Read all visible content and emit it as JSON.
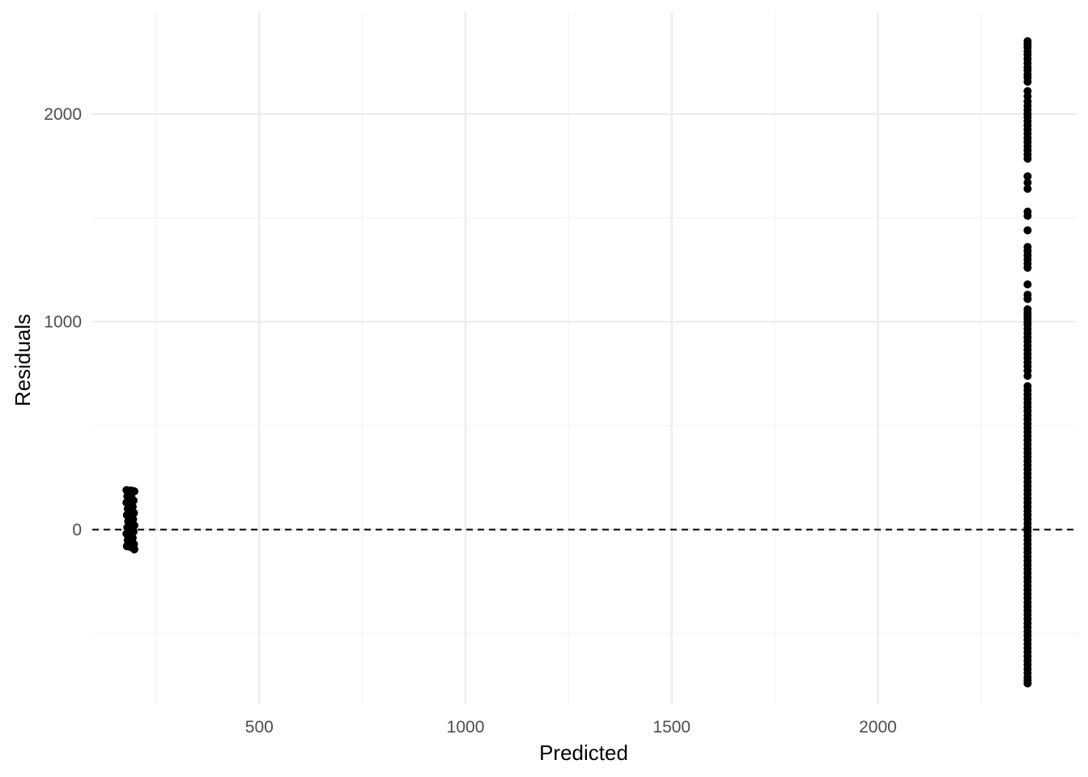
{
  "chart_data": {
    "type": "scatter",
    "title": "",
    "xlabel": "Predicted",
    "ylabel": "Residuals",
    "xlim": [
      95,
      2480
    ],
    "ylim": [
      -840,
      2490
    ],
    "x_major_ticks": [
      500,
      1000,
      1500,
      2000
    ],
    "x_minor_ticks": [
      250,
      750,
      1250,
      1750,
      2250
    ],
    "x_tick_labels": [
      "500",
      "1000",
      "1500",
      "2000"
    ],
    "y_major_ticks": [
      0,
      1000,
      2000
    ],
    "y_minor_ticks": [
      -500,
      500,
      1500
    ],
    "y_tick_labels": [
      "0",
      "1000",
      "2000"
    ],
    "grid": true,
    "reference_line": {
      "y": 0,
      "style": "dashed",
      "color": "#000000"
    },
    "point_color": "#000000",
    "series": [
      {
        "x_range": [
          178,
          197
        ],
        "points": [
          [
            178,
            190
          ],
          [
            181,
            185
          ],
          [
            184,
            180
          ],
          [
            186,
            170
          ],
          [
            188,
            188
          ],
          [
            191,
            178
          ],
          [
            194,
            186
          ],
          [
            197,
            184
          ],
          [
            180,
            160
          ],
          [
            185,
            150
          ],
          [
            190,
            155
          ],
          [
            195,
            140
          ],
          [
            178,
            130
          ],
          [
            183,
            120
          ],
          [
            188,
            125
          ],
          [
            193,
            110
          ],
          [
            181,
            100
          ],
          [
            186,
            95
          ],
          [
            191,
            90
          ],
          [
            196,
            80
          ],
          [
            179,
            70
          ],
          [
            184,
            60
          ],
          [
            189,
            65
          ],
          [
            194,
            50
          ],
          [
            182,
            40
          ],
          [
            187,
            30
          ],
          [
            192,
            35
          ],
          [
            197,
            20
          ],
          [
            180,
            10
          ],
          [
            185,
            0
          ],
          [
            190,
            5
          ],
          [
            195,
            -10
          ],
          [
            178,
            -20
          ],
          [
            183,
            -30
          ],
          [
            188,
            -25
          ],
          [
            193,
            -40
          ],
          [
            181,
            -50
          ],
          [
            186,
            -60
          ],
          [
            191,
            -55
          ],
          [
            196,
            -70
          ],
          [
            179,
            -80
          ],
          [
            184,
            -75
          ],
          [
            189,
            -85
          ],
          [
            194,
            -90
          ],
          [
            197,
            -95
          ],
          [
            182,
            -65
          ],
          [
            187,
            -45
          ],
          [
            192,
            -15
          ]
        ]
      },
      {
        "x": 2363,
        "points": [
          [
            2363,
            2350
          ],
          [
            2363,
            2335
          ],
          [
            2363,
            2320
          ],
          [
            2363,
            2300
          ],
          [
            2363,
            2285
          ],
          [
            2363,
            2265
          ],
          [
            2363,
            2245
          ],
          [
            2363,
            2225
          ],
          [
            2363,
            2210
          ],
          [
            2363,
            2190
          ],
          [
            2363,
            2175
          ],
          [
            2363,
            2155
          ],
          [
            2363,
            2110
          ],
          [
            2363,
            2085
          ],
          [
            2363,
            2060
          ],
          [
            2363,
            2040
          ],
          [
            2363,
            2020
          ],
          [
            2363,
            2000
          ],
          [
            2363,
            1985
          ],
          [
            2363,
            1965
          ],
          [
            2363,
            1945
          ],
          [
            2363,
            1925
          ],
          [
            2363,
            1905
          ],
          [
            2363,
            1885
          ],
          [
            2363,
            1865
          ],
          [
            2363,
            1845
          ],
          [
            2363,
            1825
          ],
          [
            2363,
            1805
          ],
          [
            2363,
            1785
          ],
          [
            2363,
            1700
          ],
          [
            2363,
            1670
          ],
          [
            2363,
            1640
          ],
          [
            2363,
            1530
          ],
          [
            2363,
            1510
          ],
          [
            2363,
            1440
          ],
          [
            2363,
            1360
          ],
          [
            2363,
            1340
          ],
          [
            2363,
            1320
          ],
          [
            2363,
            1300
          ],
          [
            2363,
            1280
          ],
          [
            2363,
            1260
          ],
          [
            2363,
            1180
          ],
          [
            2363,
            1130
          ],
          [
            2363,
            1110
          ],
          [
            2363,
            1060
          ],
          [
            2363,
            1045
          ],
          [
            2363,
            1030
          ],
          [
            2363,
            1015
          ],
          [
            2363,
            1000
          ],
          [
            2363,
            985
          ],
          [
            2363,
            965
          ],
          [
            2363,
            945
          ],
          [
            2363,
            925
          ],
          [
            2363,
            905
          ],
          [
            2363,
            885
          ],
          [
            2363,
            865
          ],
          [
            2363,
            845
          ],
          [
            2363,
            825
          ],
          [
            2363,
            805
          ],
          [
            2363,
            785
          ],
          [
            2363,
            765
          ],
          [
            2363,
            740
          ],
          [
            2363,
            690
          ],
          [
            2363,
            670
          ],
          [
            2363,
            650
          ],
          [
            2363,
            630
          ],
          [
            2363,
            610
          ],
          [
            2363,
            590
          ],
          [
            2363,
            570
          ],
          [
            2363,
            550
          ],
          [
            2363,
            530
          ],
          [
            2363,
            510
          ],
          [
            2363,
            490
          ],
          [
            2363,
            470
          ],
          [
            2363,
            450
          ],
          [
            2363,
            430
          ],
          [
            2363,
            410
          ],
          [
            2363,
            390
          ],
          [
            2363,
            370
          ],
          [
            2363,
            350
          ],
          [
            2363,
            330
          ],
          [
            2363,
            310
          ],
          [
            2363,
            290
          ],
          [
            2363,
            270
          ],
          [
            2363,
            250
          ],
          [
            2363,
            230
          ],
          [
            2363,
            210
          ],
          [
            2363,
            190
          ],
          [
            2363,
            170
          ],
          [
            2363,
            150
          ],
          [
            2363,
            130
          ],
          [
            2363,
            110
          ],
          [
            2363,
            90
          ],
          [
            2363,
            70
          ],
          [
            2363,
            50
          ],
          [
            2363,
            30
          ],
          [
            2363,
            10
          ],
          [
            2363,
            -10
          ],
          [
            2363,
            -30
          ],
          [
            2363,
            -50
          ],
          [
            2363,
            -70
          ],
          [
            2363,
            -90
          ],
          [
            2363,
            -110
          ],
          [
            2363,
            -130
          ],
          [
            2363,
            -150
          ],
          [
            2363,
            -170
          ],
          [
            2363,
            -190
          ],
          [
            2363,
            -210
          ],
          [
            2363,
            -230
          ],
          [
            2363,
            -250
          ],
          [
            2363,
            -270
          ],
          [
            2363,
            -290
          ],
          [
            2363,
            -310
          ],
          [
            2363,
            -330
          ],
          [
            2363,
            -350
          ],
          [
            2363,
            -370
          ],
          [
            2363,
            -390
          ],
          [
            2363,
            -410
          ],
          [
            2363,
            -430
          ],
          [
            2363,
            -450
          ],
          [
            2363,
            -470
          ],
          [
            2363,
            -490
          ],
          [
            2363,
            -510
          ],
          [
            2363,
            -530
          ],
          [
            2363,
            -550
          ],
          [
            2363,
            -570
          ],
          [
            2363,
            -590
          ],
          [
            2363,
            -610
          ],
          [
            2363,
            -630
          ],
          [
            2363,
            -650
          ],
          [
            2363,
            -670
          ],
          [
            2363,
            -690
          ],
          [
            2363,
            -710
          ],
          [
            2363,
            -725
          ],
          [
            2363,
            -740
          ]
        ]
      }
    ]
  }
}
